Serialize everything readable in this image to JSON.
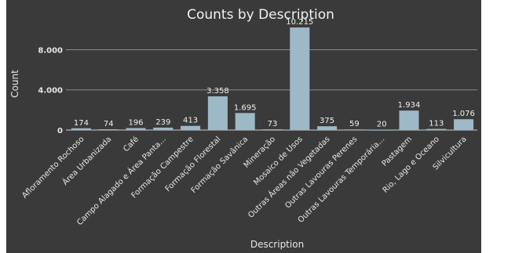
{
  "chart_data": {
    "type": "bar",
    "title": "Counts by Description",
    "xlabel": "Description",
    "ylabel": "Count",
    "ylim": [
      0,
      11000
    ],
    "yticks": [
      0,
      4000,
      8000
    ],
    "ytick_labels": [
      "0",
      "4.000",
      "8.000"
    ],
    "grid": true,
    "legend": "none",
    "bar_color": "#9db8c6",
    "categories": [
      "Afloramento Rochoso",
      "Área Urbanizada",
      "Café",
      "Campo Alagado e Área Panta...",
      "Formação Campestre",
      "Formação Florestal",
      "Formação Savânica",
      "Mineração",
      "Mosaico de Usos",
      "Outras Áreas não Vegetadas",
      "Outras Lavouras Perenes",
      "Outras Lavouras Temporária...",
      "Pastagem",
      "Rio, Lago e Oceano",
      "Silvicultura"
    ],
    "values": [
      174,
      74,
      196,
      239,
      413,
      3358,
      1695,
      73,
      10215,
      375,
      59,
      20,
      1934,
      113,
      1076
    ],
    "data_labels": [
      "174",
      "74",
      "196",
      "239",
      "413",
      "3.358",
      "1.695",
      "73",
      "10.215",
      "375",
      "59",
      "20",
      "1.934",
      "113",
      "1.076"
    ]
  }
}
